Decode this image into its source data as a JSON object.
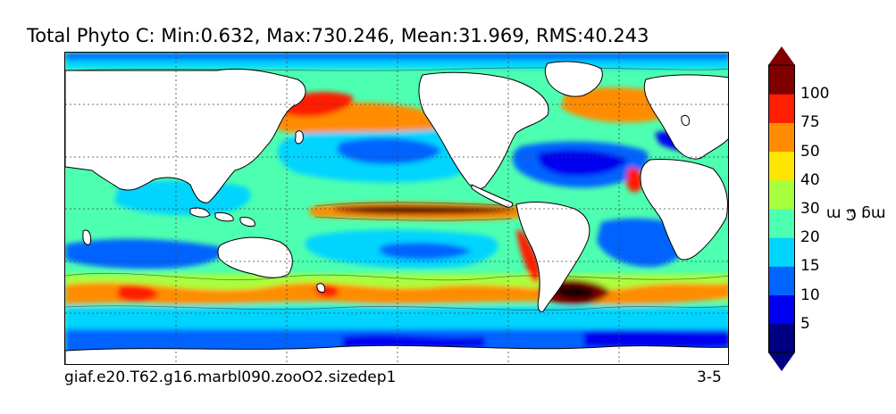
{
  "title": "Total Phyto C: Min:0.632, Max:730.246, Mean:31.969, RMS:40.243",
  "footer": {
    "case_name": "giaf.e20.T62.g16.marbl090.zooO2.sizedep1",
    "period": "3-5"
  },
  "colorbar": {
    "levels": [
      "5",
      "10",
      "15",
      "20",
      "30",
      "40",
      "50",
      "75",
      "100"
    ],
    "colors": [
      "#000080",
      "#0000f0",
      "#0064ff",
      "#00d4ff",
      "#4dffb0",
      "#a8ff3e",
      "#ffe600",
      "#ff8c00",
      "#ff1e00",
      "#800000"
    ],
    "unit": "mg C m",
    "unit_exp": "-3",
    "extend": "both"
  },
  "map": {
    "variable": "Total Phyto C",
    "land_color": "#ffffff",
    "grid": "dotted"
  }
}
